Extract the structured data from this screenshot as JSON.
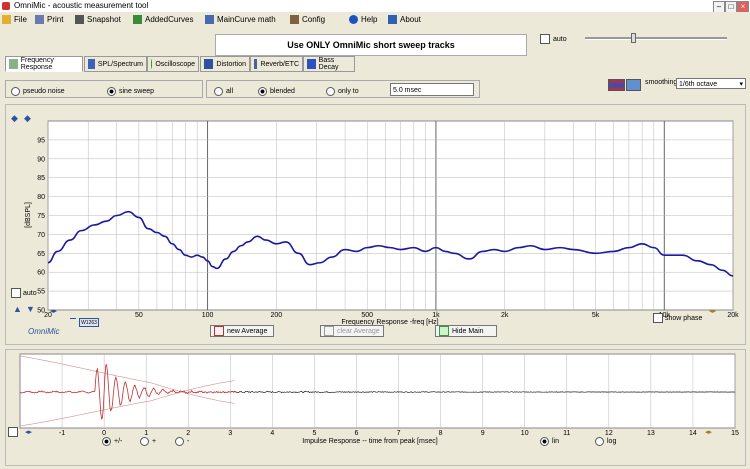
{
  "window": {
    "title": "OmniMic - acoustic measurement tool"
  },
  "menu": [
    {
      "label": "File",
      "icon": "folder-icon"
    },
    {
      "label": "Print",
      "icon": "printer-icon"
    },
    {
      "label": "Snapshot",
      "icon": "camera-icon"
    },
    {
      "label": "AddedCurves",
      "icon": "curves-icon"
    },
    {
      "label": "MainCurve math",
      "icon": "calculator-icon"
    },
    {
      "label": "Config",
      "icon": "tools-icon"
    },
    {
      "label": "Help",
      "icon": "help-icon"
    },
    {
      "label": "About",
      "icon": "about-icon"
    }
  ],
  "sweep_notice": "Use ONLY OmniMic short sweep tracks",
  "auto_label": "auto",
  "tabs": [
    "Frequency Response",
    "SPL/Spectrum",
    "Oscilloscope",
    "Distortion",
    "Reverb/ETC",
    "Bass Decay"
  ],
  "signal": {
    "pseudo_noise": "pseudo noise",
    "sine_sweep": "sine sweep"
  },
  "window_opts": {
    "all": "all",
    "blended": "blended",
    "only_to": "only to",
    "msec_value": "5.0 msec"
  },
  "smoothing": {
    "label": "smoothing",
    "value": "1/6th octave"
  },
  "colors": {
    "curve": "#1a1aa0",
    "ir_red": "#c03030",
    "grid": "#b8b8b8",
    "grid_major": "#555555",
    "bg": "#ece9d8"
  },
  "fr": {
    "chart_data": {
      "type": "line",
      "title": "",
      "xlabel": "Frequency Response -freq [Hz]",
      "ylabel": "[dBSPL]",
      "x_scale": "log",
      "xlim": [
        20,
        20000
      ],
      "ylim": [
        50,
        100
      ],
      "y_ticks": [
        50,
        55,
        60,
        65,
        70,
        75,
        80,
        85,
        90,
        95
      ],
      "y_tick_labels": [
        "50",
        "55",
        "60",
        "65",
        "70",
        "75",
        "80",
        "85",
        "90",
        "95"
      ],
      "x_ticks": [
        20,
        50,
        100,
        200,
        500,
        1000,
        2000,
        5000,
        10000,
        20000
      ],
      "x_tick_labels": [
        "20",
        "50",
        "100",
        "200",
        "500",
        "1k",
        "2k",
        "5k",
        "10k",
        "20k"
      ],
      "grid": true,
      "series": [
        {
          "x": [
            20,
            22,
            25,
            28,
            32,
            36,
            40,
            45,
            50,
            55,
            60,
            65,
            70,
            75,
            80,
            85,
            90,
            95,
            100,
            105,
            110,
            120,
            130,
            140,
            150,
            165,
            180,
            200,
            220,
            250,
            280,
            310,
            350,
            400,
            450,
            500,
            560,
            630,
            700,
            800,
            900,
            1000,
            1100,
            1200,
            1400,
            1600,
            1800,
            2000,
            2300,
            2600,
            3000,
            3500,
            4000,
            5000,
            6000,
            7000,
            8000,
            9000,
            10000,
            11000,
            12000,
            14000,
            16000,
            18000,
            20000
          ],
          "y": [
            62.5,
            65.5,
            68.5,
            71,
            72.5,
            73.5,
            75,
            76,
            74.5,
            71.5,
            70.5,
            69.5,
            67.5,
            66,
            64.5,
            64,
            64.5,
            64,
            63,
            61.5,
            61,
            63.5,
            65.5,
            67,
            68,
            69.5,
            68.5,
            67.5,
            68,
            65,
            62,
            62.5,
            64,
            66,
            65.5,
            66.5,
            67,
            66.5,
            66,
            66.5,
            65.5,
            66.5,
            65.5,
            65,
            63.5,
            65.5,
            66,
            65.5,
            66.5,
            67,
            66,
            66.5,
            66,
            65,
            65.5,
            66.5,
            67.5,
            66.5,
            64.5,
            64.5,
            64.5,
            63,
            62,
            60.5,
            59
          ]
        }
      ]
    },
    "auto_label": "auto",
    "show_phase": "show phase",
    "omnimic": "OmniMic",
    "serial": "W1263",
    "new_average": "new Average",
    "clear_average": "clear Average",
    "hide_main": "Hide Main"
  },
  "ir": {
    "chart_data": {
      "type": "line",
      "xlabel": "Impulse Response  -- time from peak [msec]",
      "xlim": [
        -2,
        15
      ],
      "x_ticks": [
        -1,
        0,
        1,
        2,
        3,
        4,
        5,
        6,
        7,
        8,
        9,
        10,
        11,
        12,
        13,
        14,
        15
      ],
      "x_tick_labels": [
        "-1",
        "0",
        "1",
        "2",
        "3",
        "4",
        "5",
        "6",
        "7",
        "8",
        "9",
        "10",
        "11",
        "12",
        "13",
        "14",
        "15"
      ],
      "grid": true
    },
    "polarity": {
      "both": "+/-",
      "plus": "+",
      "minus": "-"
    },
    "scale": {
      "lin": "lin",
      "log": "log"
    }
  }
}
